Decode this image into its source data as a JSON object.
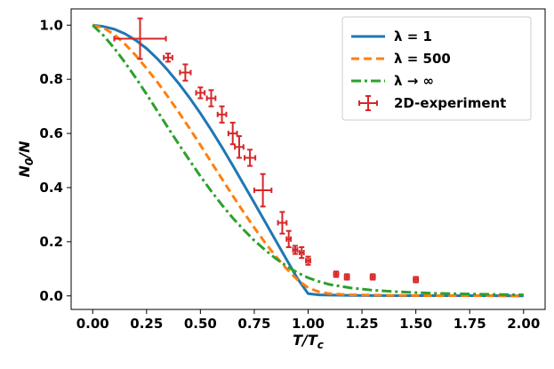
{
  "chart_data": {
    "type": "line",
    "xlabel": "T/T",
    "xlabel_sub": "c",
    "ylabel": "N",
    "ylabel_sub": "0",
    "ylabel_suffix": "/N",
    "xlim": [
      -0.1,
      2.1
    ],
    "ylim": [
      -0.05,
      1.06
    ],
    "xticks": [
      0.0,
      0.25,
      0.5,
      0.75,
      1.0,
      1.25,
      1.5,
      1.75,
      2.0
    ],
    "xtick_labels": [
      "0.00",
      "0.25",
      "0.50",
      "0.75",
      "1.00",
      "1.25",
      "1.50",
      "1.75",
      "2.00"
    ],
    "yticks": [
      0.0,
      0.2,
      0.4,
      0.6,
      0.8,
      1.0
    ],
    "ytick_labels": [
      "0.0",
      "0.2",
      "0.4",
      "0.6",
      "0.8",
      "1.0"
    ],
    "grid": false,
    "legend_position": "top-right",
    "series": [
      {
        "name": "λ = 1",
        "style": "solid",
        "color": "#1f77b4",
        "x": [
          0.0,
          0.05,
          0.1,
          0.15,
          0.2,
          0.25,
          0.3,
          0.35,
          0.4,
          0.45,
          0.5,
          0.55,
          0.6,
          0.65,
          0.7,
          0.75,
          0.8,
          0.85,
          0.9,
          0.95,
          1.0,
          1.05,
          1.1,
          1.2,
          1.4,
          1.6,
          1.8,
          2.0
        ],
        "y": [
          1.0,
          0.995,
          0.985,
          0.968,
          0.944,
          0.914,
          0.876,
          0.832,
          0.784,
          0.731,
          0.674,
          0.613,
          0.549,
          0.482,
          0.413,
          0.344,
          0.274,
          0.204,
          0.134,
          0.065,
          0.008,
          0.004,
          0.003,
          0.002,
          0.001,
          0.001,
          0.001,
          0.0
        ]
      },
      {
        "name": "λ = 500",
        "style": "dashed",
        "color": "#ff7f0e",
        "x": [
          0.0,
          0.05,
          0.1,
          0.15,
          0.2,
          0.25,
          0.3,
          0.35,
          0.4,
          0.45,
          0.5,
          0.55,
          0.6,
          0.65,
          0.7,
          0.75,
          0.8,
          0.85,
          0.9,
          0.95,
          1.0,
          1.05,
          1.1,
          1.2,
          1.4,
          1.6,
          1.8,
          2.0
        ],
        "y": [
          1.0,
          0.99,
          0.965,
          0.93,
          0.888,
          0.84,
          0.79,
          0.735,
          0.678,
          0.618,
          0.557,
          0.494,
          0.432,
          0.37,
          0.31,
          0.252,
          0.197,
          0.146,
          0.1,
          0.06,
          0.03,
          0.015,
          0.008,
          0.004,
          0.002,
          0.001,
          0.001,
          0.0
        ]
      },
      {
        "name": "λ → ∞",
        "style": "dashdot",
        "color": "#2ca02c",
        "x": [
          0.0,
          0.05,
          0.1,
          0.15,
          0.2,
          0.25,
          0.3,
          0.35,
          0.4,
          0.45,
          0.5,
          0.55,
          0.6,
          0.65,
          0.7,
          0.75,
          0.8,
          0.85,
          0.9,
          0.95,
          1.0,
          1.05,
          1.1,
          1.2,
          1.3,
          1.4,
          1.5,
          1.6,
          1.8,
          2.0
        ],
        "y": [
          1.0,
          0.962,
          0.915,
          0.862,
          0.805,
          0.745,
          0.683,
          0.621,
          0.56,
          0.5,
          0.442,
          0.387,
          0.336,
          0.288,
          0.245,
          0.205,
          0.17,
          0.138,
          0.11,
          0.086,
          0.067,
          0.053,
          0.042,
          0.029,
          0.021,
          0.016,
          0.012,
          0.009,
          0.006,
          0.004
        ]
      }
    ],
    "errorbar_series": {
      "name": "2D-experiment",
      "color": "#d62728",
      "points": [
        {
          "x": 0.22,
          "y": 0.95,
          "xerr": 0.12,
          "yerr": 0.075
        },
        {
          "x": 0.35,
          "y": 0.88,
          "xerr": 0.02,
          "yerr": 0.015
        },
        {
          "x": 0.43,
          "y": 0.825,
          "xerr": 0.025,
          "yerr": 0.03
        },
        {
          "x": 0.5,
          "y": 0.75,
          "xerr": 0.02,
          "yerr": 0.02
        },
        {
          "x": 0.55,
          "y": 0.73,
          "xerr": 0.02,
          "yerr": 0.03
        },
        {
          "x": 0.6,
          "y": 0.67,
          "xerr": 0.02,
          "yerr": 0.03
        },
        {
          "x": 0.65,
          "y": 0.6,
          "xerr": 0.02,
          "yerr": 0.04
        },
        {
          "x": 0.68,
          "y": 0.55,
          "xerr": 0.02,
          "yerr": 0.04
        },
        {
          "x": 0.73,
          "y": 0.51,
          "xerr": 0.025,
          "yerr": 0.03
        },
        {
          "x": 0.79,
          "y": 0.39,
          "xerr": 0.04,
          "yerr": 0.06
        },
        {
          "x": 0.88,
          "y": 0.27,
          "xerr": 0.02,
          "yerr": 0.04
        },
        {
          "x": 0.91,
          "y": 0.21,
          "xerr": 0.01,
          "yerr": 0.03
        },
        {
          "x": 0.94,
          "y": 0.17,
          "xerr": 0.01,
          "yerr": 0.015
        },
        {
          "x": 0.97,
          "y": 0.16,
          "xerr": 0.01,
          "yerr": 0.02
        },
        {
          "x": 1.0,
          "y": 0.13,
          "xerr": 0.01,
          "yerr": 0.015
        },
        {
          "x": 1.13,
          "y": 0.08,
          "xerr": 0.01,
          "yerr": 0.01
        },
        {
          "x": 1.18,
          "y": 0.07,
          "xerr": 0.01,
          "yerr": 0.01
        },
        {
          "x": 1.3,
          "y": 0.07,
          "xerr": 0.01,
          "yerr": 0.01
        },
        {
          "x": 1.5,
          "y": 0.06,
          "xerr": 0.01,
          "yerr": 0.01
        }
      ]
    }
  }
}
